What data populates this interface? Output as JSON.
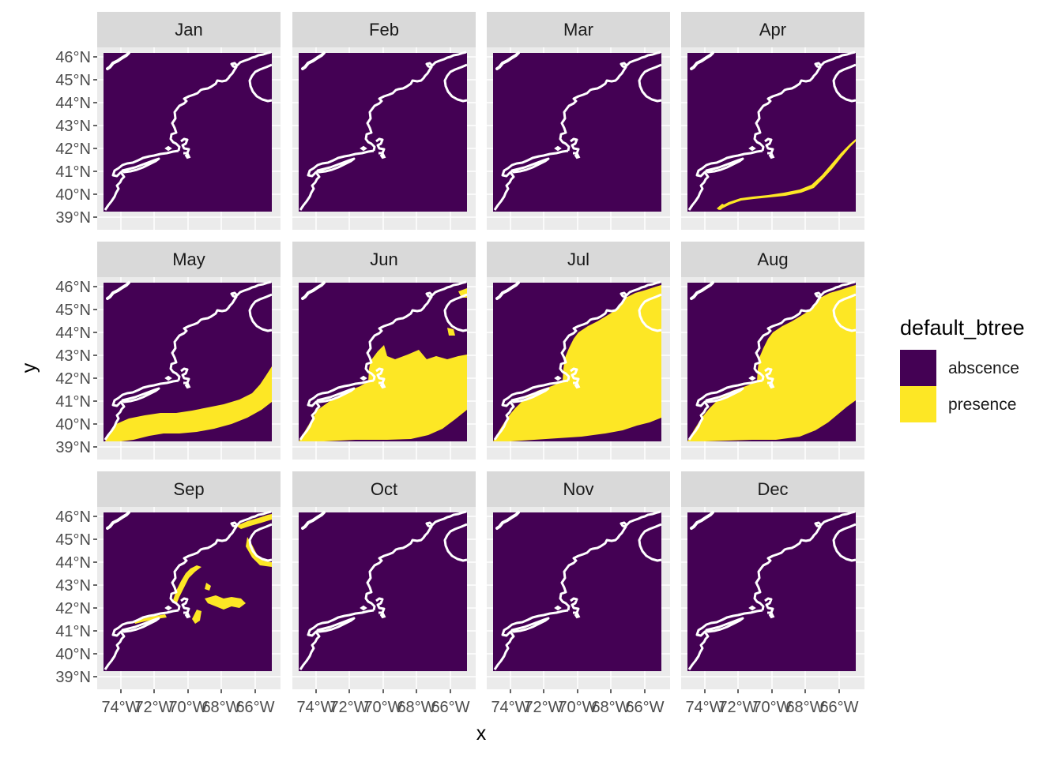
{
  "figure": {
    "x_axis_title": "x",
    "y_axis_title": "y"
  },
  "chart_data": {
    "type": "faceted-raster-map",
    "x_ticks": [
      "74°W",
      "72°W",
      "70°W",
      "68°W",
      "66°W"
    ],
    "y_ticks": [
      "39°N",
      "40°N",
      "41°N",
      "42°N",
      "43°N",
      "44°N",
      "45°N",
      "46°N"
    ],
    "xlim": [
      -75,
      -65
    ],
    "ylim": [
      38.8,
      46.1
    ],
    "coastline_color": "#ffffff",
    "panel_background": "#ebebeb",
    "legend": {
      "title": "default_btree",
      "position": "right",
      "entries": [
        {
          "label": "abscence",
          "color": "#440154"
        },
        {
          "label": "presence",
          "color": "#fde725"
        }
      ]
    },
    "facets": [
      {
        "month": "Jan",
        "presence": "none"
      },
      {
        "month": "Feb",
        "presence": "none"
      },
      {
        "month": "Mar",
        "presence": "none"
      },
      {
        "month": "Apr",
        "presence": "narrow shelf-break band"
      },
      {
        "month": "May",
        "presence": "southern shelf band"
      },
      {
        "month": "Jun",
        "presence": "broad shelf area"
      },
      {
        "month": "Jul",
        "presence": "most of Gulf of Maine and shelf"
      },
      {
        "month": "Aug",
        "presence": "most of Gulf of Maine and shelf"
      },
      {
        "month": "Sep",
        "presence": "coastal fringe and Georges Bank patches"
      },
      {
        "month": "Oct",
        "presence": "none"
      },
      {
        "month": "Nov",
        "presence": "none"
      },
      {
        "month": "Dec",
        "presence": "none"
      }
    ]
  }
}
